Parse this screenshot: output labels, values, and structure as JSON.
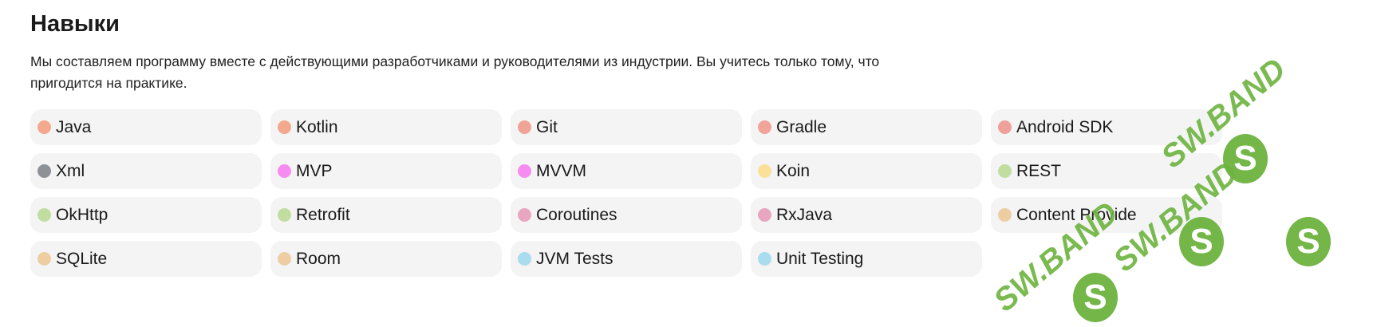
{
  "section": {
    "title": "Навыки",
    "description": "Мы составляем программу вместе с действующими разработчиками и руководителями из индустрии. Вы учитесь только тому, что пригодится на практике."
  },
  "skills": [
    {
      "label": "Java",
      "color": "#f2a98d"
    },
    {
      "label": "Kotlin",
      "color": "#f2a98d"
    },
    {
      "label": "Git",
      "color": "#f0a496"
    },
    {
      "label": "Gradle",
      "color": "#f0a49a"
    },
    {
      "label": "Android SDK",
      "color": "#f0a09a"
    },
    {
      "label": "Xml",
      "color": "#8e9196"
    },
    {
      "label": "MVP",
      "color": "#f78cf0"
    },
    {
      "label": "MVVM",
      "color": "#f78cf0"
    },
    {
      "label": "Koin",
      "color": "#fbe09a"
    },
    {
      "label": "REST",
      "color": "#c1dea0"
    },
    {
      "label": "OkHttp",
      "color": "#c1dea0"
    },
    {
      "label": "Retrofit",
      "color": "#c1dea0"
    },
    {
      "label": "Coroutines",
      "color": "#e8a6c0"
    },
    {
      "label": "RxJava",
      "color": "#e8a6c0"
    },
    {
      "label": "Content Provide",
      "color": "#edcea2"
    },
    {
      "label": "SQLite",
      "color": "#edcea2"
    },
    {
      "label": "Room",
      "color": "#edcea2"
    },
    {
      "label": "JVM Tests",
      "color": "#a8dcee"
    },
    {
      "label": "Unit Testing",
      "color": "#a8dcee"
    }
  ],
  "watermark": {
    "text": "SW.BAND",
    "logo": "S"
  }
}
